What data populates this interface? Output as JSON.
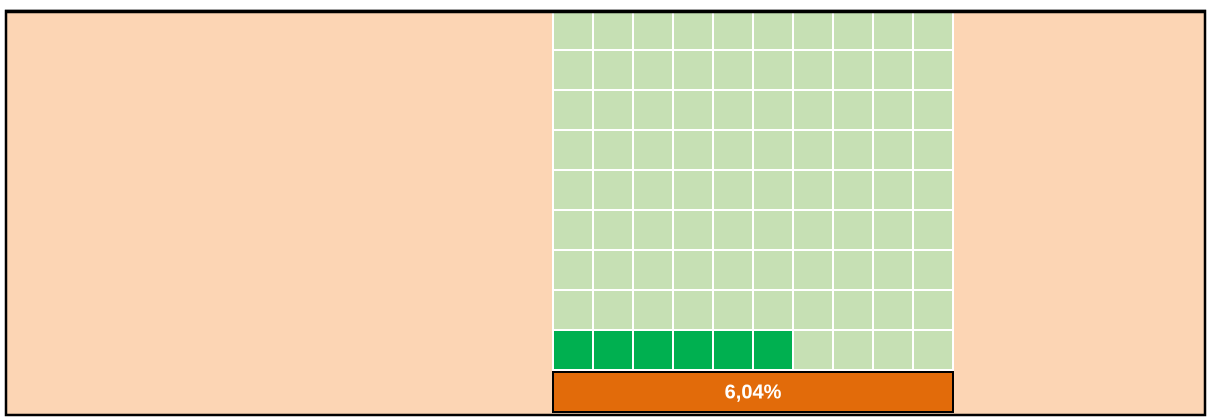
{
  "chart_data": {
    "type": "waffle",
    "values": [
      6.04
    ],
    "value_labels": [
      "6,04%"
    ],
    "color": "#00b050",
    "empty_color": "#c6e0b4",
    "label_color": "#e26b0a",
    "background": "#fcd5b4"
  }
}
